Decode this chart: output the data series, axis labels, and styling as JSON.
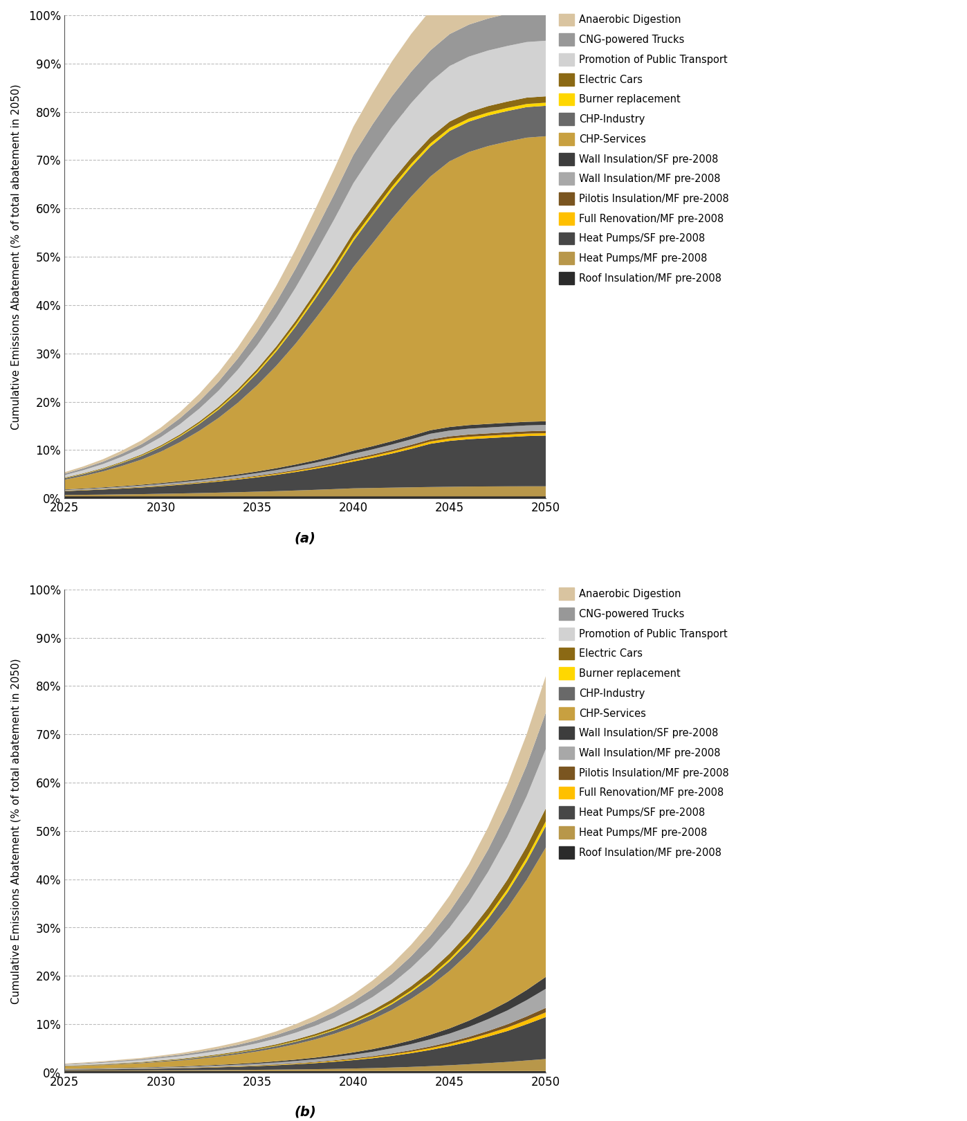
{
  "x": [
    2025,
    2026,
    2027,
    2028,
    2029,
    2030,
    2031,
    2032,
    2033,
    2034,
    2035,
    2036,
    2037,
    2038,
    2039,
    2040,
    2041,
    2042,
    2043,
    2044,
    2045,
    2046,
    2047,
    2048,
    2049,
    2050
  ],
  "labels": [
    "Roof Insulation/MF pre-2008",
    "Heat Pumps/MF pre-2008",
    "Heat Pumps/SF pre-2008",
    "Full Renovation/MF pre-2008",
    "Pilotis Insulation/MF pre-2008",
    "Wall Insulation/MF pre-2008",
    "Wall Insulation/SF pre-2008",
    "CHP-Services",
    "CHP-Industry",
    "Burner replacement",
    "Electric Cars",
    "Promotion of Public Transport",
    "CNG-powered Trucks",
    "Anaerobic Digestion"
  ],
  "color_map": {
    "Roof Insulation/MF pre-2008": "#2b2b2b",
    "Heat Pumps/MF pre-2008": "#b8974a",
    "Heat Pumps/SF pre-2008": "#474747",
    "Full Renovation/MF pre-2008": "#FFC000",
    "Pilotis Insulation/MF pre-2008": "#7a5520",
    "Wall Insulation/MF pre-2008": "#a8a8a8",
    "Wall Insulation/SF pre-2008": "#3d3d3d",
    "CHP-Services": "#C8A040",
    "CHP-Industry": "#696969",
    "Burner replacement": "#FFD700",
    "Electric Cars": "#8B6914",
    "Promotion of Public Transport": "#d2d2d2",
    "CNG-powered Trucks": "#989898",
    "Anaerobic Digestion": "#D9C4A0"
  },
  "legend_order": [
    "Anaerobic Digestion",
    "CNG-powered Trucks",
    "Promotion of Public Transport",
    "Electric Cars",
    "Burner replacement",
    "CHP-Industry",
    "CHP-Services",
    "Wall Insulation/SF pre-2008",
    "Wall Insulation/MF pre-2008",
    "Pilotis Insulation/MF pre-2008",
    "Full Renovation/MF pre-2008",
    "Heat Pumps/SF pre-2008",
    "Heat Pumps/MF pre-2008",
    "Roof Insulation/MF pre-2008"
  ],
  "ylabel": "Cumulative Emissions Abatement (% of total abatement in 2050)",
  "xlabel_a": "(a)",
  "xlabel_b": "(b)",
  "ytick_labels": [
    "0%",
    "10%",
    "20%",
    "30%",
    "40%",
    "50%",
    "60%",
    "70%",
    "80%",
    "90%",
    "100%"
  ],
  "xticks": [
    2025,
    2030,
    2035,
    2040,
    2045,
    2050
  ],
  "data_a": {
    "Roof Insulation/MF pre-2008": [
      0.4,
      0.4,
      0.4,
      0.4,
      0.4,
      0.4,
      0.4,
      0.4,
      0.4,
      0.4,
      0.4,
      0.4,
      0.4,
      0.4,
      0.4,
      0.4,
      0.4,
      0.4,
      0.4,
      0.4,
      0.4,
      0.4,
      0.4,
      0.4,
      0.4,
      0.4
    ],
    "Heat Pumps/MF pre-2008": [
      0.3,
      0.34,
      0.38,
      0.43,
      0.48,
      0.55,
      0.62,
      0.7,
      0.79,
      0.88,
      0.99,
      1.1,
      1.23,
      1.37,
      1.52,
      1.68,
      1.75,
      1.82,
      1.89,
      1.95,
      2.0,
      2.05,
      2.07,
      2.09,
      2.1,
      2.1
    ],
    "Heat Pumps/SF pre-2008": [
      0.8,
      0.92,
      1.05,
      1.2,
      1.37,
      1.56,
      1.78,
      2.03,
      2.3,
      2.62,
      2.97,
      3.37,
      3.82,
      4.33,
      4.9,
      5.54,
      6.25,
      7.05,
      7.95,
      8.95,
      9.5,
      9.8,
      10.0,
      10.2,
      10.4,
      10.5
    ],
    "Full Renovation/MF pre-2008": [
      0.05,
      0.06,
      0.06,
      0.07,
      0.08,
      0.09,
      0.1,
      0.11,
      0.13,
      0.15,
      0.17,
      0.19,
      0.22,
      0.25,
      0.28,
      0.32,
      0.36,
      0.4,
      0.44,
      0.47,
      0.49,
      0.5,
      0.5,
      0.5,
      0.5,
      0.5
    ],
    "Pilotis Insulation/MF pre-2008": [
      0.05,
      0.05,
      0.06,
      0.07,
      0.08,
      0.09,
      0.1,
      0.11,
      0.13,
      0.14,
      0.16,
      0.18,
      0.21,
      0.23,
      0.26,
      0.3,
      0.33,
      0.37,
      0.4,
      0.43,
      0.45,
      0.47,
      0.48,
      0.49,
      0.49,
      0.5
    ],
    "Wall Insulation/MF pre-2008": [
      0.15,
      0.17,
      0.2,
      0.22,
      0.25,
      0.29,
      0.33,
      0.37,
      0.42,
      0.48,
      0.54,
      0.61,
      0.69,
      0.78,
      0.88,
      0.99,
      1.05,
      1.1,
      1.14,
      1.17,
      1.19,
      1.2,
      1.21,
      1.21,
      1.21,
      1.2
    ],
    "Wall Insulation/SF pre-2008": [
      0.1,
      0.11,
      0.13,
      0.14,
      0.16,
      0.18,
      0.21,
      0.24,
      0.27,
      0.3,
      0.34,
      0.39,
      0.44,
      0.49,
      0.55,
      0.62,
      0.66,
      0.69,
      0.72,
      0.73,
      0.74,
      0.75,
      0.75,
      0.75,
      0.75,
      0.75
    ],
    "CHP-Services": [
      2.0,
      2.6,
      3.3,
      4.2,
      5.2,
      6.5,
      8.1,
      10.0,
      12.2,
      14.8,
      17.8,
      21.2,
      25.0,
      29.2,
      33.5,
      38.0,
      42.0,
      46.0,
      49.5,
      52.5,
      55.0,
      56.5,
      57.5,
      58.2,
      58.8,
      59.0
    ],
    "CHP-Industry": [
      0.3,
      0.38,
      0.48,
      0.6,
      0.75,
      0.94,
      1.16,
      1.43,
      1.74,
      2.1,
      2.52,
      3.0,
      3.54,
      4.13,
      4.77,
      5.44,
      5.8,
      6.0,
      6.15,
      6.22,
      6.27,
      6.3,
      6.32,
      6.33,
      6.33,
      6.3
    ],
    "Burner replacement": [
      0.05,
      0.06,
      0.07,
      0.09,
      0.11,
      0.13,
      0.16,
      0.19,
      0.23,
      0.28,
      0.33,
      0.38,
      0.44,
      0.5,
      0.55,
      0.6,
      0.62,
      0.63,
      0.63,
      0.64,
      0.64,
      0.64,
      0.64,
      0.64,
      0.64,
      0.64
    ],
    "Electric Cars": [
      0.1,
      0.12,
      0.14,
      0.17,
      0.2,
      0.24,
      0.28,
      0.33,
      0.39,
      0.46,
      0.54,
      0.63,
      0.74,
      0.86,
      0.99,
      1.13,
      1.2,
      1.25,
      1.28,
      1.3,
      1.31,
      1.32,
      1.32,
      1.32,
      1.32,
      1.32
    ],
    "Promotion of Public Transport": [
      0.5,
      0.65,
      0.83,
      1.06,
      1.34,
      1.69,
      2.12,
      2.65,
      3.28,
      4.02,
      4.87,
      5.83,
      6.88,
      7.99,
      9.1,
      10.2,
      10.8,
      11.1,
      11.3,
      11.4,
      11.5,
      11.5,
      11.5,
      11.5,
      11.5,
      11.5
    ],
    "CNG-powered Trucks": [
      0.3,
      0.39,
      0.5,
      0.63,
      0.79,
      0.99,
      1.24,
      1.54,
      1.89,
      2.31,
      2.79,
      3.33,
      3.93,
      4.57,
      5.21,
      5.85,
      6.2,
      6.4,
      6.5,
      6.56,
      6.6,
      6.62,
      6.63,
      6.63,
      6.63,
      6.63
    ],
    "Anaerobic Digestion": [
      0.3,
      0.39,
      0.5,
      0.63,
      0.79,
      0.99,
      1.24,
      1.54,
      1.89,
      2.31,
      2.79,
      3.33,
      3.93,
      4.57,
      5.21,
      5.85,
      6.5,
      7.2,
      7.8,
      8.3,
      8.7,
      9.0,
      9.2,
      9.4,
      9.5,
      9.6
    ]
  },
  "data_b": {
    "Roof Insulation/MF pre-2008": [
      0.3,
      0.3,
      0.3,
      0.3,
      0.3,
      0.3,
      0.3,
      0.3,
      0.3,
      0.3,
      0.3,
      0.3,
      0.3,
      0.3,
      0.3,
      0.3,
      0.3,
      0.3,
      0.3,
      0.3,
      0.3,
      0.3,
      0.3,
      0.3,
      0.3,
      0.3
    ],
    "Heat Pumps/MF pre-2008": [
      0.1,
      0.11,
      0.12,
      0.13,
      0.14,
      0.16,
      0.17,
      0.19,
      0.22,
      0.24,
      0.27,
      0.31,
      0.35,
      0.4,
      0.46,
      0.54,
      0.62,
      0.74,
      0.87,
      1.03,
      1.21,
      1.42,
      1.65,
      1.9,
      2.2,
      2.5
    ],
    "Heat Pumps/SF pre-2008": [
      0.2,
      0.22,
      0.25,
      0.28,
      0.32,
      0.37,
      0.42,
      0.49,
      0.57,
      0.66,
      0.77,
      0.9,
      1.06,
      1.24,
      1.47,
      1.73,
      2.04,
      2.41,
      2.84,
      3.35,
      3.95,
      4.66,
      5.5,
      6.4,
      7.5,
      8.7
    ],
    "Full Renovation/MF pre-2008": [
      0.02,
      0.02,
      0.02,
      0.03,
      0.03,
      0.04,
      0.04,
      0.05,
      0.06,
      0.07,
      0.08,
      0.1,
      0.11,
      0.13,
      0.16,
      0.19,
      0.22,
      0.26,
      0.31,
      0.37,
      0.43,
      0.51,
      0.6,
      0.71,
      0.83,
      0.97
    ],
    "Pilotis Insulation/MF pre-2008": [
      0.02,
      0.02,
      0.02,
      0.03,
      0.03,
      0.04,
      0.04,
      0.05,
      0.06,
      0.07,
      0.08,
      0.09,
      0.11,
      0.13,
      0.15,
      0.18,
      0.21,
      0.25,
      0.3,
      0.35,
      0.41,
      0.49,
      0.57,
      0.68,
      0.79,
      0.93
    ],
    "Wall Insulation/MF pre-2008": [
      0.08,
      0.09,
      0.1,
      0.12,
      0.13,
      0.15,
      0.18,
      0.21,
      0.24,
      0.28,
      0.33,
      0.39,
      0.46,
      0.54,
      0.64,
      0.76,
      0.9,
      1.06,
      1.26,
      1.49,
      1.76,
      2.07,
      2.44,
      2.87,
      3.37,
      3.95
    ],
    "Wall Insulation/SF pre-2008": [
      0.05,
      0.06,
      0.06,
      0.07,
      0.08,
      0.1,
      0.11,
      0.13,
      0.15,
      0.18,
      0.21,
      0.24,
      0.29,
      0.34,
      0.4,
      0.47,
      0.56,
      0.66,
      0.78,
      0.93,
      1.09,
      1.29,
      1.52,
      1.79,
      2.1,
      2.47
    ],
    "CHP-Services": [
      0.5,
      0.58,
      0.67,
      0.78,
      0.9,
      1.05,
      1.23,
      1.44,
      1.68,
      1.97,
      2.31,
      2.71,
      3.19,
      3.75,
      4.42,
      5.22,
      6.16,
      7.27,
      8.59,
      10.1,
      11.9,
      14.0,
      16.5,
      19.4,
      22.8,
      26.8
    ],
    "CHP-Industry": [
      0.08,
      0.09,
      0.11,
      0.12,
      0.14,
      0.17,
      0.2,
      0.23,
      0.27,
      0.32,
      0.38,
      0.44,
      0.52,
      0.62,
      0.73,
      0.87,
      1.02,
      1.2,
      1.42,
      1.68,
      1.98,
      2.33,
      2.74,
      3.22,
      3.78,
      4.44
    ],
    "Burner replacement": [
      0.02,
      0.02,
      0.02,
      0.03,
      0.03,
      0.04,
      0.04,
      0.05,
      0.06,
      0.07,
      0.08,
      0.1,
      0.12,
      0.14,
      0.16,
      0.19,
      0.23,
      0.27,
      0.32,
      0.37,
      0.44,
      0.52,
      0.61,
      0.72,
      0.85,
      1.0
    ],
    "Electric Cars": [
      0.05,
      0.06,
      0.07,
      0.08,
      0.09,
      0.11,
      0.12,
      0.14,
      0.17,
      0.2,
      0.23,
      0.27,
      0.32,
      0.38,
      0.44,
      0.52,
      0.62,
      0.73,
      0.86,
      1.01,
      1.19,
      1.4,
      1.65,
      1.94,
      2.28,
      2.68
    ],
    "Promotion of Public Transport": [
      0.2,
      0.23,
      0.27,
      0.32,
      0.37,
      0.44,
      0.52,
      0.61,
      0.72,
      0.85,
      1.01,
      1.19,
      1.41,
      1.66,
      1.97,
      2.33,
      2.75,
      3.25,
      3.84,
      4.54,
      5.36,
      6.33,
      7.48,
      8.84,
      10.4,
      12.3
    ],
    "CNG-powered Trucks": [
      0.12,
      0.14,
      0.17,
      0.2,
      0.23,
      0.27,
      0.32,
      0.38,
      0.45,
      0.53,
      0.63,
      0.74,
      0.88,
      1.04,
      1.22,
      1.44,
      1.71,
      2.01,
      2.38,
      2.81,
      3.31,
      3.91,
      4.61,
      5.44,
      6.41,
      7.56
    ],
    "Anaerobic Digestion": [
      0.12,
      0.14,
      0.17,
      0.2,
      0.23,
      0.27,
      0.32,
      0.38,
      0.45,
      0.53,
      0.63,
      0.74,
      0.88,
      1.04,
      1.22,
      1.44,
      1.71,
      2.01,
      2.38,
      2.81,
      3.31,
      3.91,
      4.61,
      5.44,
      6.41,
      7.56
    ]
  }
}
